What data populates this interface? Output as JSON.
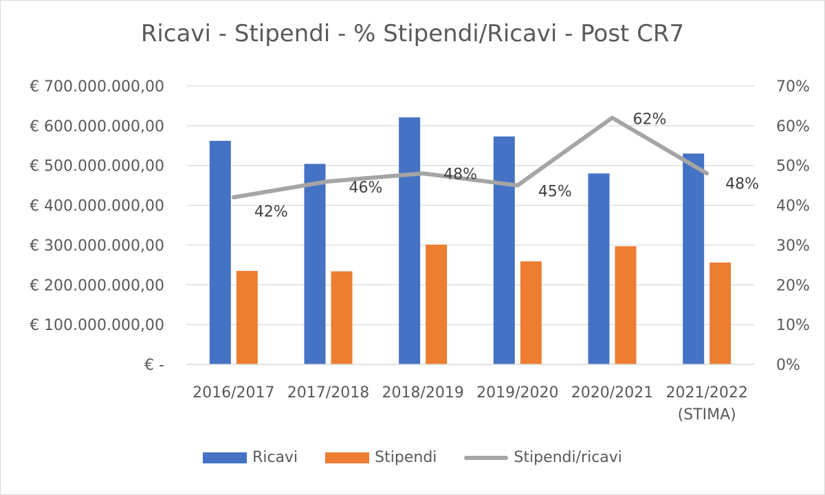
{
  "chart_data": {
    "type": "bar",
    "title": "Ricavi - Stipendi - % Stipendi/Ricavi - Post CR7",
    "categories": [
      "2016/2017",
      "2017/2018",
      "2018/2019",
      "2019/2020",
      "2020/2021",
      "2021/2022 (STIMA)"
    ],
    "category_lines": [
      [
        "2016/2017"
      ],
      [
        "2017/2018"
      ],
      [
        "2018/2019"
      ],
      [
        "2019/2020"
      ],
      [
        "2020/2021"
      ],
      [
        "2021/2022",
        "(STIMA)"
      ]
    ],
    "series": [
      {
        "name": "Ricavi",
        "type": "bar",
        "axis": "left",
        "color": "#4472C4",
        "values": [
          562000000,
          504000000,
          621000000,
          573000000,
          480000000,
          530000000
        ]
      },
      {
        "name": "Stipendi",
        "type": "bar",
        "axis": "left",
        "color": "#ED7D31",
        "values": [
          235000000,
          234000000,
          301000000,
          259000000,
          297000000,
          256000000
        ]
      },
      {
        "name": "Stipendi/ricavi",
        "type": "line",
        "axis": "right",
        "color": "#A5A5A5",
        "values": [
          0.42,
          0.46,
          0.48,
          0.45,
          0.62,
          0.48
        ],
        "labels": [
          "42%",
          "46%",
          "48%",
          "45%",
          "62%",
          "48%"
        ]
      }
    ],
    "y_left": {
      "ylim": [
        0,
        700000000
      ],
      "ticks": [
        "€ -",
        "€ 100.000.000,00",
        "€ 200.000.000,00",
        "€ 300.000.000,00",
        "€ 400.000.000,00",
        "€ 500.000.000,00",
        "€ 600.000.000,00",
        "€ 700.000.000,00"
      ]
    },
    "y_right": {
      "ylim": [
        0,
        0.7
      ],
      "ticks": [
        "0%",
        "10%",
        "20%",
        "30%",
        "40%",
        "50%",
        "60%",
        "70%"
      ]
    },
    "grid": true,
    "legend": "bottom"
  }
}
